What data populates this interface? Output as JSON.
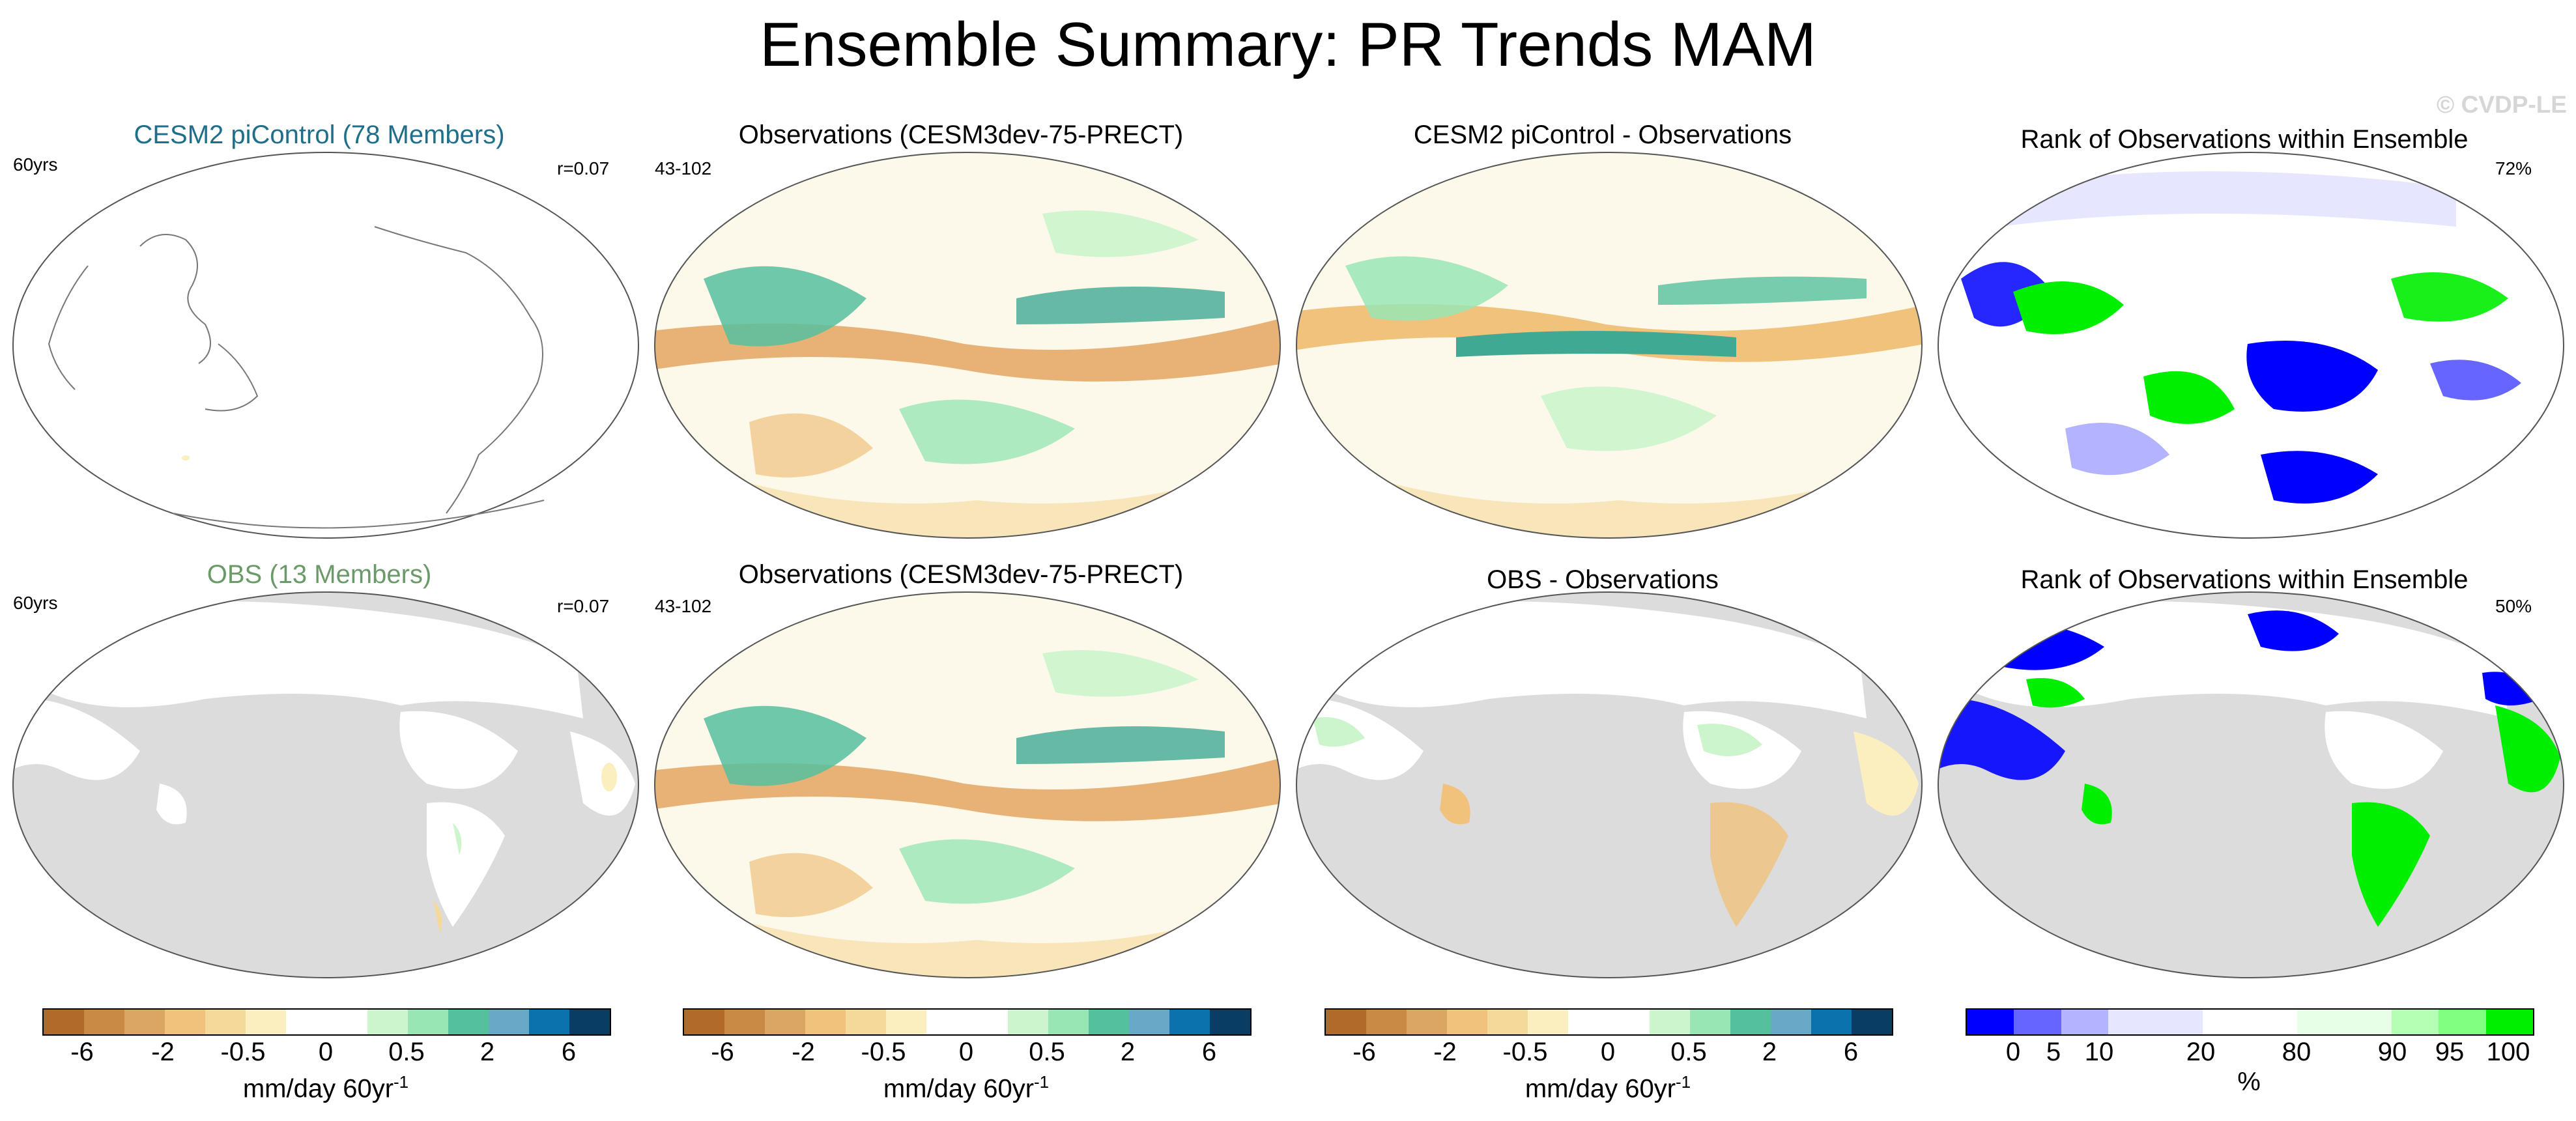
{
  "title": "Ensemble Summary: PR Trends MAM",
  "watermark": "© CVDP-LE",
  "rows": [
    {
      "model_title": "CESM2 piControl (78 Members)",
      "model_title_color": "#1f6f8b",
      "years": "60yrs",
      "r_value": "r=0.07",
      "obs_title": "Observations (CESM3dev-75-PRECT)",
      "obs_years": "43-102",
      "diff_title": "CESM2 piControl - Observations",
      "rank_title": "Rank of Observations within Ensemble",
      "rank_pct": "72%"
    },
    {
      "model_title": "OBS (13 Members)",
      "model_title_color": "#6a9a68",
      "years": "60yrs",
      "r_value": "r=0.07",
      "obs_title": "Observations (CESM3dev-75-PRECT)",
      "obs_years": "43-102",
      "diff_title": "OBS - Observations",
      "rank_title": "Rank of Observations within Ensemble",
      "rank_pct": "50%"
    }
  ],
  "colorbars": {
    "trend": {
      "colors": [
        "#b06a2a",
        "#c98a45",
        "#dba563",
        "#f0c27c",
        "#f5d99a",
        "#fbefc0",
        "#ffffff",
        "#ffffff",
        "#ccf5cc",
        "#99e6b5",
        "#55c09e",
        "#6aa8c8",
        "#0c72ad",
        "#0a3d63"
      ],
      "ticks": [
        "-6",
        "-2",
        "-0.5",
        "0",
        "0.5",
        "2",
        "6"
      ],
      "label": "mm/day 60yr",
      "label_sup": "-1"
    },
    "rank": {
      "colors": [
        "#0000ff",
        "#6666ff",
        "#b3b3ff",
        "#e6e6ff",
        "#e6e6ff",
        "#ffffff",
        "#ffffff",
        "#e6ffe6",
        "#e6ffe6",
        "#b3ffb3",
        "#80ff80",
        "#00ee00"
      ],
      "ticks": [
        "0",
        "5",
        "10",
        "20",
        "80",
        "90",
        "95",
        "100"
      ],
      "label": "%"
    }
  }
}
